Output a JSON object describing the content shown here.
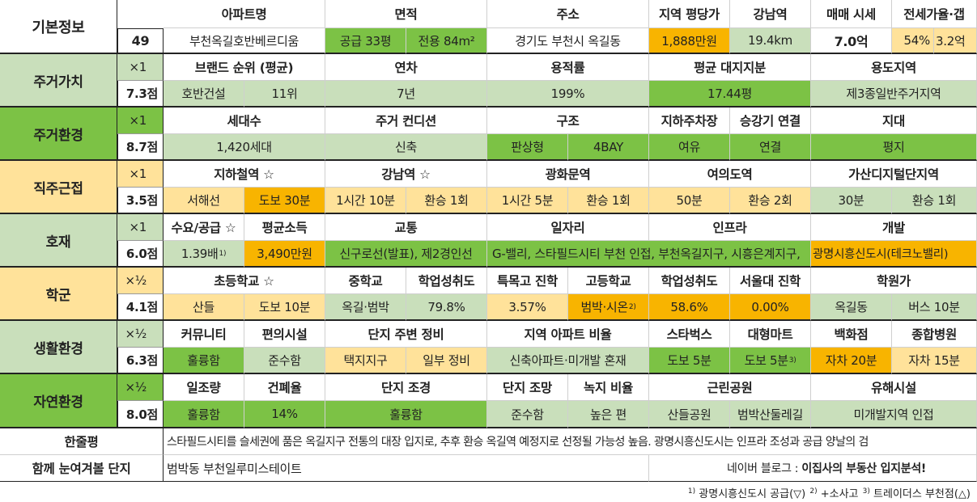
{
  "basic": {
    "label": "기본정보",
    "number": "49",
    "headers": [
      "아파트명",
      "면적",
      "주소",
      "지역 평당가",
      "강남역",
      "매매 시세",
      "전세가율·갭"
    ],
    "apt_name": "부천옥길호반베르디움",
    "area_supply": "공급 33평",
    "area_private": "전용 84m²",
    "address": "경기도 부천시 옥길동",
    "price_per_pyeong": "1,888만원",
    "gangnam_distance": "19.4km",
    "sale_price": "7.0억",
    "jeonse_ratio": "54%",
    "jeonse_gap": "3.2억"
  },
  "housing_value": {
    "label": "주거가치",
    "multiplier": "×1",
    "score": "7.3점",
    "headers": [
      "브랜드 순위 (평균)",
      "연차",
      "용적률",
      "평균 대지지분",
      "용도지역"
    ],
    "brand": "호반건설",
    "brand_rank": "11위",
    "age": "7년",
    "far": "199%",
    "land_share": "17.44평",
    "zone": "제3종일반주거지역"
  },
  "housing_env": {
    "label": "주거환경",
    "multiplier": "×1",
    "score": "8.7점",
    "headers": [
      "세대수",
      "주거 컨디션",
      "구조",
      "지하주차장",
      "승강기 연결",
      "지대"
    ],
    "households": "1,420세대",
    "condition": "신축",
    "structure_type": "판상형",
    "structure_bay": "4BAY",
    "parking": "여유",
    "elevator": "연결",
    "terrain": "평지"
  },
  "commute": {
    "label": "직주근접",
    "multiplier": "×1",
    "score": "3.5점",
    "headers": [
      "지하철역 ☆",
      "강남역 ☆",
      "광화문역",
      "여의도역",
      "가산디지털단지역"
    ],
    "station": "서해선",
    "station_walk": "도보 30분",
    "gangnam_time": "1시간 10분",
    "gangnam_transfer": "환승 1회",
    "gwanghwamun_time": "1시간 5분",
    "gwanghwamun_transfer": "환승 1회",
    "yeouido_time": "50분",
    "yeouido_transfer": "환승 2회",
    "gasan_time": "30분",
    "gasan_transfer": "환승 1회"
  },
  "development": {
    "label": "호재",
    "multiplier": "×1",
    "score": "6.0점",
    "headers": [
      "수요/공급 ☆",
      "평균소득",
      "교통",
      "일자리",
      "인프라",
      "개발"
    ],
    "supply_demand": "1.39배",
    "supply_note": "1)",
    "income": "3,490만원",
    "transport": "신구로선(발표), 제2경인선",
    "jobs_infra": "G-밸리, 스타필드시티 부천 인접, 부천옥길지구, 시흥은계지구,",
    "develop": "광명시흥신도시(테크노밸리)"
  },
  "school": {
    "label": "학군",
    "multiplier": "×½",
    "score": "4.1점",
    "headers": [
      "초등학교 ☆",
      "중학교",
      "학업성취도",
      "특목고 진학",
      "고등학교",
      "학업성취도",
      "서울대 진학",
      "학원가"
    ],
    "elementary": "산들",
    "elementary_walk": "도보 10분",
    "middle": "옥길·범박",
    "middle_achieve": "79.8%",
    "special_hs": "3.57%",
    "high": "범박·시온",
    "high_note": "2)",
    "high_achieve": "58.6%",
    "snu": "0.00%",
    "academy": "옥길동",
    "academy_time": "버스 10분"
  },
  "living": {
    "label": "생활환경",
    "multiplier": "×½",
    "score": "6.3점",
    "headers": [
      "커뮤니티",
      "편의시설",
      "단지 주변 정비",
      "지역 아파트 비율",
      "스타벅스",
      "대형마트",
      "백화점",
      "종합병원"
    ],
    "community": "훌륭함",
    "convenience": "준수함",
    "surround": "택지지구",
    "surround_state": "일부 정비",
    "apt_ratio": "신축아파트·미개발 혼재",
    "starbucks": "도보 5분",
    "mart": "도보 5분",
    "mart_note": "3)",
    "dept": "자차 20분",
    "hospital": "자차 15분"
  },
  "nature": {
    "label": "자연환경",
    "multiplier": "×½",
    "score": "8.0점",
    "headers": [
      "일조량",
      "건폐율",
      "단지 조경",
      "단지 조망",
      "녹지 비율",
      "근린공원",
      "유해시설"
    ],
    "sunlight": "훌륭함",
    "bcr": "14%",
    "landscape": "훌륭함",
    "view": "준수함",
    "green": "높은 편",
    "park1": "산들공원",
    "park2": "범박산둘레길",
    "hazard": "미개발지역 인접"
  },
  "summary": {
    "label": "한줄평",
    "text": "스타필드시티를 슬세권에 품은 옥길지구 전통의 대장 입지로, 추후 환승 옥길역 예정지로 선정될 가능성 높음. 광명시흥신도시는 인프라 조성과 공급 양날의 검"
  },
  "related": {
    "label": "함께 눈여겨볼 단지",
    "text": "범박동 부천일루미스테이트",
    "blog_prefix": "네이버 블로그 : ",
    "blog_name": "이집사의 부동산 입지분석!"
  },
  "footnotes": {
    "n1": "1)",
    "t1": " 광명시흥신도시 공급(▽) ",
    "n2": "2)",
    "t2": " +소사고 ",
    "n3": "3)",
    "t3": " 트레이더스 부천점(△)"
  },
  "colors": {
    "light_green": "#c9dfbb",
    "dark_green": "#7cc245",
    "light_yellow": "#ffe29a",
    "orange": "#f8b400"
  }
}
